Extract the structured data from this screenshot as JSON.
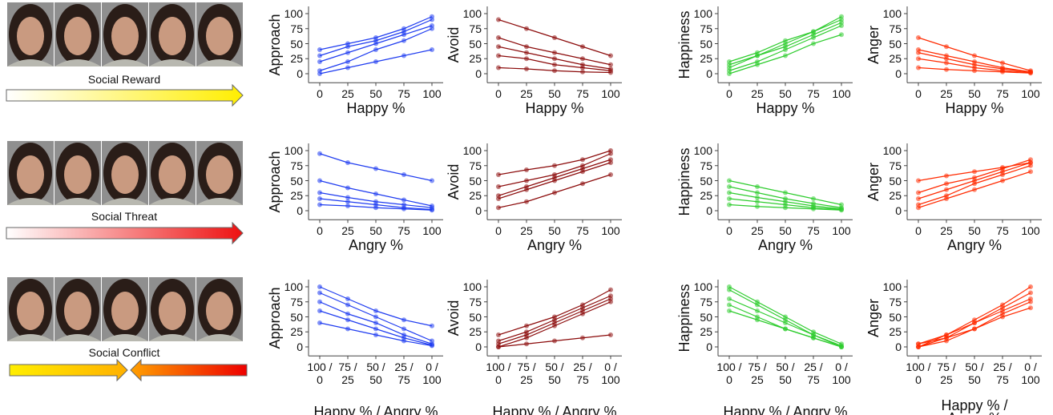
{
  "rows": [
    {
      "label": "Social Reward"
    },
    {
      "label": "Social Threat"
    },
    {
      "label": "Social Conflict"
    }
  ],
  "chart_data": [
    {
      "type": "scatter",
      "y_label": "Approach",
      "x_label": "Happy %",
      "color": "#1f3cf0",
      "x": [
        0,
        25,
        50,
        75,
        100
      ],
      "xlim": [
        -10,
        110
      ],
      "ylim": [
        -15,
        112
      ],
      "xticks": [
        0,
        25,
        50,
        75,
        100
      ],
      "yticks": [
        0,
        25,
        50,
        75,
        100
      ],
      "series": [
        {
          "values": [
            20,
            35,
            50,
            65,
            80
          ]
        },
        {
          "values": [
            5,
            20,
            40,
            55,
            75
          ]
        },
        {
          "values": [
            40,
            50,
            60,
            75,
            95
          ]
        },
        {
          "values": [
            0,
            10,
            20,
            30,
            40
          ]
        },
        {
          "values": [
            30,
            45,
            55,
            70,
            90
          ]
        }
      ]
    },
    {
      "type": "scatter",
      "y_label": "Avoid",
      "x_label": "Happy %",
      "color": "#8b0a0a",
      "x": [
        0,
        25,
        50,
        75,
        100
      ],
      "xlim": [
        -10,
        110
      ],
      "ylim": [
        -15,
        112
      ],
      "xticks": [
        0,
        25,
        50,
        75,
        100
      ],
      "yticks": [
        0,
        25,
        50,
        75,
        100
      ],
      "series": [
        {
          "values": [
            60,
            45,
            35,
            25,
            15
          ]
        },
        {
          "values": [
            30,
            25,
            15,
            10,
            5
          ]
        },
        {
          "values": [
            90,
            75,
            60,
            45,
            30
          ]
        },
        {
          "values": [
            10,
            8,
            5,
            3,
            2
          ]
        },
        {
          "values": [
            45,
            35,
            25,
            15,
            8
          ]
        }
      ]
    },
    {
      "type": "scatter",
      "y_label": "Happiness",
      "x_label": "Happy %",
      "color": "#2ecc2e",
      "x": [
        0,
        25,
        50,
        75,
        100
      ],
      "xlim": [
        -10,
        110
      ],
      "ylim": [
        -15,
        112
      ],
      "xticks": [
        0,
        25,
        50,
        75,
        100
      ],
      "yticks": [
        0,
        25,
        50,
        75,
        100
      ],
      "series": [
        {
          "values": [
            10,
            30,
            50,
            70,
            90
          ]
        },
        {
          "values": [
            5,
            20,
            40,
            60,
            80
          ]
        },
        {
          "values": [
            20,
            35,
            55,
            70,
            95
          ]
        },
        {
          "values": [
            0,
            15,
            30,
            50,
            65
          ]
        },
        {
          "values": [
            15,
            30,
            45,
            65,
            85
          ]
        }
      ]
    },
    {
      "type": "scatter",
      "y_label": "Anger",
      "x_label": "Happy %",
      "color": "#ff2a00",
      "x": [
        0,
        25,
        50,
        75,
        100
      ],
      "xlim": [
        -10,
        110
      ],
      "ylim": [
        -15,
        112
      ],
      "xticks": [
        0,
        25,
        50,
        75,
        100
      ],
      "yticks": [
        0,
        25,
        50,
        75,
        100
      ],
      "series": [
        {
          "values": [
            40,
            30,
            20,
            10,
            3
          ]
        },
        {
          "values": [
            25,
            18,
            10,
            5,
            2
          ]
        },
        {
          "values": [
            60,
            45,
            30,
            18,
            5
          ]
        },
        {
          "values": [
            10,
            7,
            5,
            3,
            1
          ]
        },
        {
          "values": [
            35,
            25,
            15,
            8,
            3
          ]
        }
      ]
    },
    {
      "type": "scatter",
      "y_label": "Approach",
      "x_label": "Angry %",
      "color": "#1f3cf0",
      "x": [
        0,
        25,
        50,
        75,
        100
      ],
      "xlim": [
        -10,
        110
      ],
      "ylim": [
        -15,
        112
      ],
      "xticks": [
        0,
        25,
        50,
        75,
        100
      ],
      "yticks": [
        0,
        25,
        50,
        75,
        100
      ],
      "series": [
        {
          "values": [
            95,
            80,
            70,
            60,
            50
          ]
        },
        {
          "values": [
            30,
            22,
            15,
            10,
            5
          ]
        },
        {
          "values": [
            20,
            15,
            10,
            5,
            2
          ]
        },
        {
          "values": [
            50,
            38,
            28,
            18,
            8
          ]
        },
        {
          "values": [
            10,
            8,
            5,
            3,
            1
          ]
        }
      ]
    },
    {
      "type": "scatter",
      "y_label": "Avoid",
      "x_label": "Angry %",
      "color": "#8b0a0a",
      "x": [
        0,
        25,
        50,
        75,
        100
      ],
      "xlim": [
        -10,
        110
      ],
      "ylim": [
        -15,
        112
      ],
      "xticks": [
        0,
        25,
        50,
        75,
        100
      ],
      "yticks": [
        0,
        25,
        50,
        75,
        100
      ],
      "series": [
        {
          "values": [
            20,
            35,
            50,
            65,
            80
          ]
        },
        {
          "values": [
            40,
            50,
            60,
            75,
            95
          ]
        },
        {
          "values": [
            5,
            15,
            30,
            45,
            60
          ]
        },
        {
          "values": [
            60,
            68,
            75,
            85,
            100
          ]
        },
        {
          "values": [
            25,
            40,
            55,
            70,
            85
          ]
        }
      ]
    },
    {
      "type": "scatter",
      "y_label": "Happiness",
      "x_label": "Angry %",
      "color": "#2ecc2e",
      "x": [
        0,
        25,
        50,
        75,
        100
      ],
      "xlim": [
        -10,
        110
      ],
      "ylim": [
        -15,
        112
      ],
      "xticks": [
        0,
        25,
        50,
        75,
        100
      ],
      "yticks": [
        0,
        25,
        50,
        75,
        100
      ],
      "series": [
        {
          "values": [
            40,
            30,
            20,
            12,
            5
          ]
        },
        {
          "values": [
            20,
            15,
            10,
            5,
            2
          ]
        },
        {
          "values": [
            50,
            40,
            30,
            20,
            10
          ]
        },
        {
          "values": [
            10,
            7,
            5,
            3,
            1
          ]
        },
        {
          "values": [
            30,
            22,
            15,
            8,
            3
          ]
        }
      ]
    },
    {
      "type": "scatter",
      "y_label": "Anger",
      "x_label": "Angry %",
      "color": "#ff2a00",
      "x": [
        0,
        25,
        50,
        75,
        100
      ],
      "xlim": [
        -10,
        110
      ],
      "ylim": [
        -15,
        112
      ],
      "xticks": [
        0,
        25,
        50,
        75,
        100
      ],
      "yticks": [
        0,
        25,
        50,
        75,
        100
      ],
      "series": [
        {
          "values": [
            10,
            25,
            45,
            60,
            75
          ]
        },
        {
          "values": [
            30,
            45,
            55,
            70,
            85
          ]
        },
        {
          "values": [
            5,
            20,
            35,
            50,
            65
          ]
        },
        {
          "values": [
            50,
            58,
            65,
            72,
            80
          ]
        },
        {
          "values": [
            20,
            35,
            50,
            65,
            80
          ]
        }
      ]
    },
    {
      "type": "scatter",
      "y_label": "Approach",
      "x_label": "Happy % / Angry %",
      "color": "#1f3cf0",
      "x": [
        0,
        25,
        50,
        75,
        100
      ],
      "xlim": [
        -10,
        110
      ],
      "ylim": [
        -15,
        112
      ],
      "xticks": [
        {
          "value": 0,
          "label": "100 /\n0"
        },
        {
          "value": 25,
          "label": "75 /\n25"
        },
        {
          "value": 50,
          "label": "50 /\n50"
        },
        {
          "value": 75,
          "label": "25 /\n75"
        },
        {
          "value": 100,
          "label": "0 /\n100"
        }
      ],
      "yticks": [
        0,
        25,
        50,
        75,
        100
      ],
      "series": [
        {
          "values": [
            90,
            70,
            50,
            30,
            10
          ]
        },
        {
          "values": [
            60,
            45,
            30,
            15,
            3
          ]
        },
        {
          "values": [
            100,
            80,
            60,
            45,
            35
          ]
        },
        {
          "values": [
            40,
            30,
            20,
            10,
            2
          ]
        },
        {
          "values": [
            75,
            55,
            40,
            20,
            5
          ]
        }
      ]
    },
    {
      "type": "scatter",
      "y_label": "Avoid",
      "x_label": "Happy % / Angry %",
      "color": "#8b0a0a",
      "x": [
        0,
        25,
        50,
        75,
        100
      ],
      "xlim": [
        -10,
        110
      ],
      "ylim": [
        -15,
        112
      ],
      "xticks": [
        {
          "value": 0,
          "label": "100 /\n0"
        },
        {
          "value": 25,
          "label": "75 /\n25"
        },
        {
          "value": 50,
          "label": "50 /\n50"
        },
        {
          "value": 75,
          "label": "25 /\n75"
        },
        {
          "value": 100,
          "label": "0 /\n100"
        }
      ],
      "yticks": [
        0,
        25,
        50,
        75,
        100
      ],
      "series": [
        {
          "values": [
            5,
            20,
            40,
            60,
            80
          ]
        },
        {
          "values": [
            0,
            15,
            35,
            55,
            75
          ]
        },
        {
          "values": [
            20,
            35,
            50,
            70,
            95
          ]
        },
        {
          "values": [
            0,
            5,
            10,
            15,
            20
          ]
        },
        {
          "values": [
            10,
            25,
            45,
            65,
            85
          ]
        }
      ]
    },
    {
      "type": "scatter",
      "y_label": "Happiness",
      "x_label": "Happy % / Angry %",
      "color": "#2ecc2e",
      "x": [
        0,
        25,
        50,
        75,
        100
      ],
      "xlim": [
        -10,
        110
      ],
      "ylim": [
        -15,
        112
      ],
      "xticks": [
        {
          "value": 0,
          "label": "100 /\n0"
        },
        {
          "value": 25,
          "label": "75 /\n25"
        },
        {
          "value": 50,
          "label": "50 /\n50"
        },
        {
          "value": 75,
          "label": "25 /\n75"
        },
        {
          "value": 100,
          "label": "0 /\n100"
        }
      ],
      "yticks": [
        0,
        25,
        50,
        75,
        100
      ],
      "series": [
        {
          "values": [
            95,
            70,
            45,
            20,
            0
          ]
        },
        {
          "values": [
            80,
            60,
            40,
            20,
            2
          ]
        },
        {
          "values": [
            70,
            50,
            30,
            15,
            0
          ]
        },
        {
          "values": [
            100,
            75,
            50,
            25,
            5
          ]
        },
        {
          "values": [
            60,
            45,
            30,
            15,
            0
          ]
        }
      ]
    },
    {
      "type": "scatter",
      "y_label": "Anger",
      "x_label": "Happy % / Angry %",
      "color": "#ff2a00",
      "x": [
        0,
        25,
        50,
        75,
        100
      ],
      "xlim": [
        -10,
        110
      ],
      "ylim": [
        -15,
        112
      ],
      "xticks": [
        {
          "value": 0,
          "label": "100 /\n0"
        },
        {
          "value": 25,
          "label": "75 /\n25"
        },
        {
          "value": 50,
          "label": "50 /\n50"
        },
        {
          "value": 75,
          "label": "25 /\n75"
        },
        {
          "value": 100,
          "label": "0 /\n100"
        }
      ],
      "yticks": [
        0,
        25,
        50,
        75,
        100
      ],
      "series": [
        {
          "values": [
            0,
            15,
            40,
            65,
            90
          ]
        },
        {
          "values": [
            5,
            20,
            40,
            60,
            80
          ]
        },
        {
          "values": [
            0,
            10,
            30,
            55,
            75
          ]
        },
        {
          "values": [
            0,
            20,
            45,
            70,
            100
          ]
        },
        {
          "values": [
            5,
            15,
            30,
            50,
            65
          ]
        }
      ]
    }
  ]
}
